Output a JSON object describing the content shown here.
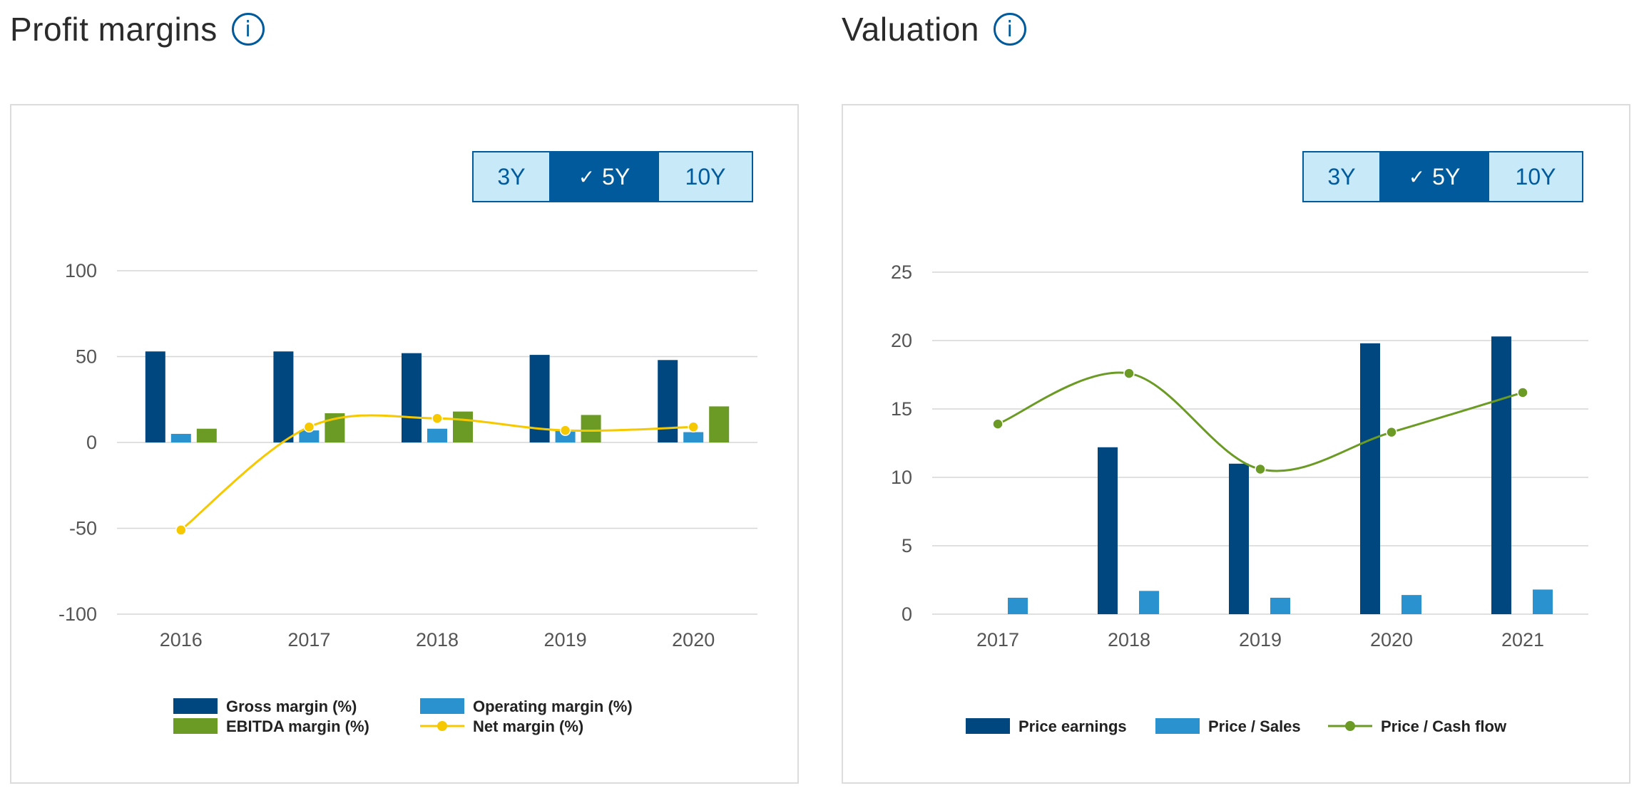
{
  "left": {
    "title": "Profit margins",
    "range_buttons": [
      {
        "label": "3Y",
        "active": false
      },
      {
        "label": "5Y",
        "active": true
      },
      {
        "label": "10Y",
        "active": false
      }
    ]
  },
  "right": {
    "title": "Valuation",
    "range_buttons": [
      {
        "label": "3Y",
        "active": false
      },
      {
        "label": "5Y",
        "active": true
      },
      {
        "label": "10Y",
        "active": false
      }
    ]
  },
  "icons": {
    "info": "info-icon",
    "check": "check-icon"
  },
  "colors": {
    "dark_blue": "#00467f",
    "light_blue": "#2a93cf",
    "green": "#6b9b25",
    "yellow": "#f6c800",
    "button_bg": "#c7e9f8",
    "button_active": "#005a9b"
  },
  "chart_data": [
    {
      "type": "bar",
      "categories": [
        "2016",
        "2017",
        "2018",
        "2019",
        "2020"
      ],
      "ylim": [
        -100,
        100
      ],
      "yticks": [
        100,
        50,
        0,
        -50,
        -100
      ],
      "grid": true,
      "legend_position": "bottom",
      "series": [
        {
          "name": "Gross margin (%)",
          "type": "bar",
          "color": "#00467f",
          "values": [
            53,
            53,
            52,
            51,
            48
          ]
        },
        {
          "name": "Operating margin (%)",
          "type": "bar",
          "color": "#2a93cf",
          "values": [
            5,
            7,
            8,
            7,
            6
          ]
        },
        {
          "name": "EBITDA margin (%)",
          "type": "bar",
          "color": "#6b9b25",
          "values": [
            8,
            17,
            18,
            16,
            21
          ]
        },
        {
          "name": "Net margin (%)",
          "type": "line",
          "color": "#f6c800",
          "values": [
            -51,
            9,
            14,
            7,
            9
          ]
        }
      ]
    },
    {
      "type": "bar",
      "categories": [
        "2017",
        "2018",
        "2019",
        "2020",
        "2021"
      ],
      "ylim": [
        0,
        25
      ],
      "yticks": [
        25,
        20,
        15,
        10,
        5,
        0
      ],
      "grid": true,
      "legend_position": "bottom",
      "series": [
        {
          "name": "Price earnings",
          "type": "bar",
          "color": "#00467f",
          "values": [
            null,
            12.2,
            11.0,
            19.8,
            20.3
          ]
        },
        {
          "name": "Price / Sales",
          "type": "bar",
          "color": "#2a93cf",
          "values": [
            1.2,
            1.7,
            1.2,
            1.4,
            1.8
          ]
        },
        {
          "name": "Price / Cash flow",
          "type": "line",
          "color": "#6b9b25",
          "values": [
            13.9,
            17.6,
            10.6,
            13.3,
            16.2
          ]
        }
      ]
    }
  ]
}
